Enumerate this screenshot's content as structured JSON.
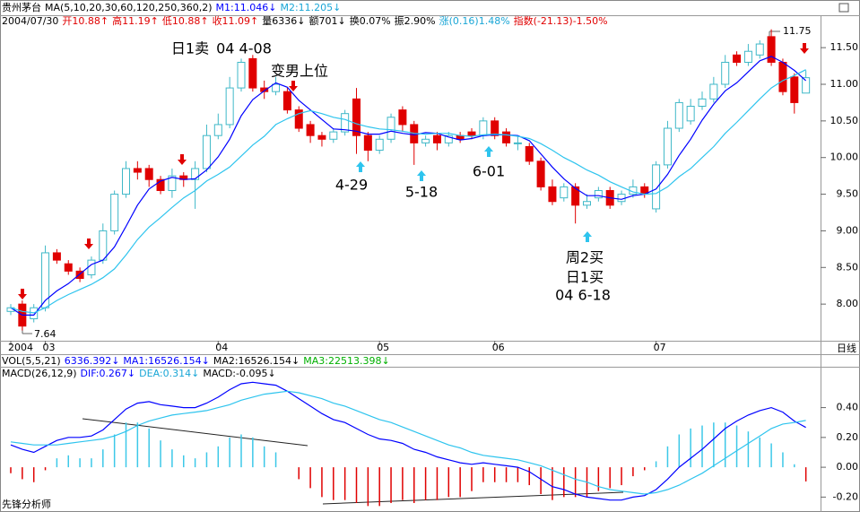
{
  "header": {
    "rows": [
      [
        {
          "text": "贵州茅台",
          "color": "#000000"
        },
        {
          "text": "MA(5,10,20,30,60,120,250,360,2)",
          "color": "#000000"
        },
        {
          "text": "M1:11.046↓",
          "color": "#0000ff"
        },
        {
          "text": "M2:11.205↓",
          "color": "#1aa6d6"
        }
      ],
      [
        {
          "text": "2004/07/30",
          "color": "#000000"
        },
        {
          "text": "开10.88↑",
          "color": "#e00000"
        },
        {
          "text": "高11.19↑",
          "color": "#e00000"
        },
        {
          "text": "低10.88↑",
          "color": "#e00000"
        },
        {
          "text": "收11.09↑",
          "color": "#e00000"
        },
        {
          "text": "量6336↓",
          "color": "#000000"
        },
        {
          "text": "额701↓",
          "color": "#000000"
        },
        {
          "text": "换0.07%",
          "color": "#000000"
        },
        {
          "text": "振2.90%",
          "color": "#000000"
        },
        {
          "text": "涨(0.16)1.48%",
          "color": "#1aa6d6"
        },
        {
          "text": "指数(-21.13)-1.50%",
          "color": "#e00000"
        }
      ]
    ]
  },
  "vol_header": [
    {
      "text": "VOL(5,5,21)",
      "color": "#000000"
    },
    {
      "text": "6336.392↓",
      "color": "#0000ff"
    },
    {
      "text": "MA1:16526.154↓",
      "color": "#0000ff"
    },
    {
      "text": "MA2:16526.154↓",
      "color": "#000000"
    },
    {
      "text": "MA3:22513.398↓",
      "color": "#00b000"
    }
  ],
  "footer": "先锋分析师",
  "chart_data": [
    {
      "type": "candlestick",
      "x_axis_label": "日线",
      "up_color": "#3fb8c8",
      "down_color": "#e00000",
      "categories": [
        "2004",
        null,
        null,
        "03",
        null,
        null,
        null,
        null,
        null,
        null,
        null,
        null,
        null,
        null,
        null,
        null,
        null,
        null,
        "04",
        null,
        null,
        null,
        null,
        null,
        null,
        null,
        null,
        null,
        null,
        null,
        null,
        null,
        "05",
        null,
        null,
        null,
        null,
        null,
        null,
        null,
        null,
        null,
        "06",
        null,
        null,
        null,
        null,
        null,
        null,
        null,
        null,
        null,
        null,
        null,
        null,
        null,
        "07",
        null,
        null,
        null,
        null,
        null,
        null,
        null,
        null,
        null,
        null,
        null,
        null,
        null
      ],
      "open": [
        7.9,
        8.0,
        7.8,
        7.95,
        8.7,
        8.55,
        8.45,
        8.4,
        8.6,
        9.0,
        9.5,
        9.85,
        9.85,
        9.7,
        9.55,
        9.75,
        9.7,
        9.85,
        10.3,
        10.45,
        10.95,
        11.35,
        10.95,
        10.9,
        10.9,
        10.65,
        10.45,
        10.3,
        10.25,
        10.35,
        10.8,
        10.3,
        10.1,
        10.25,
        10.65,
        10.45,
        10.2,
        10.3,
        10.2,
        10.3,
        10.35,
        10.3,
        10.5,
        10.35,
        10.2,
        10.15,
        9.95,
        9.6,
        9.45,
        9.6,
        9.35,
        9.45,
        9.55,
        9.4,
        9.5,
        9.6,
        9.3,
        9.9,
        10.4,
        10.5,
        10.7,
        10.8,
        11.0,
        11.4,
        11.3,
        11.4,
        11.65,
        11.3,
        11.1,
        10.88
      ],
      "high": [
        8.0,
        8.05,
        8.0,
        8.8,
        8.75,
        8.6,
        8.5,
        8.65,
        9.1,
        9.55,
        9.95,
        9.95,
        9.9,
        9.75,
        9.85,
        9.8,
        9.95,
        10.45,
        10.6,
        11.1,
        11.35,
        11.4,
        11.05,
        11.1,
        10.95,
        10.7,
        10.5,
        10.35,
        10.4,
        10.65,
        10.95,
        10.35,
        10.3,
        10.6,
        10.7,
        10.5,
        10.3,
        10.35,
        10.35,
        10.35,
        10.4,
        10.55,
        10.55,
        10.4,
        10.3,
        10.2,
        10.0,
        9.7,
        9.65,
        9.65,
        9.5,
        9.6,
        9.6,
        9.55,
        9.7,
        9.65,
        9.95,
        10.5,
        10.8,
        10.8,
        10.9,
        11.1,
        11.4,
        11.45,
        11.55,
        11.6,
        11.75,
        11.35,
        11.15,
        11.19
      ],
      "low": [
        7.85,
        7.64,
        7.75,
        7.9,
        8.55,
        8.4,
        8.3,
        8.35,
        8.55,
        8.95,
        9.45,
        9.7,
        9.6,
        9.5,
        9.45,
        9.6,
        9.3,
        9.8,
        10.25,
        10.4,
        10.9,
        10.9,
        10.8,
        10.85,
        10.6,
        10.35,
        10.2,
        10.15,
        10.2,
        10.3,
        10.05,
        9.95,
        10.05,
        10.2,
        10.35,
        9.9,
        10.15,
        10.1,
        10.15,
        10.2,
        10.25,
        10.25,
        10.25,
        10.15,
        10.1,
        9.9,
        9.55,
        9.35,
        9.4,
        9.1,
        9.3,
        9.4,
        9.3,
        9.35,
        9.45,
        9.45,
        9.25,
        9.85,
        10.35,
        10.45,
        10.65,
        10.75,
        10.95,
        11.25,
        11.25,
        11.35,
        11.25,
        10.85,
        10.6,
        10.88
      ],
      "close": [
        7.95,
        7.7,
        7.95,
        8.7,
        8.6,
        8.45,
        8.35,
        8.6,
        9.0,
        9.5,
        9.85,
        9.8,
        9.7,
        9.55,
        9.75,
        9.7,
        9.85,
        10.3,
        10.45,
        10.95,
        11.3,
        10.95,
        10.9,
        11.0,
        10.65,
        10.4,
        10.3,
        10.25,
        10.35,
        10.6,
        10.3,
        10.1,
        10.25,
        10.55,
        10.45,
        10.2,
        10.25,
        10.2,
        10.3,
        10.25,
        10.3,
        10.5,
        10.3,
        10.2,
        10.2,
        9.95,
        9.6,
        9.4,
        9.6,
        9.35,
        9.4,
        9.55,
        9.35,
        9.5,
        9.6,
        9.5,
        9.9,
        10.4,
        10.75,
        10.7,
        10.8,
        11.0,
        11.3,
        11.3,
        11.45,
        11.55,
        11.3,
        10.9,
        10.75,
        11.09
      ],
      "series": [
        {
          "color": "#0000ff",
          "values": [
            7.95,
            7.85,
            7.85,
            8.05,
            8.18,
            8.28,
            8.41,
            8.54,
            8.6,
            8.78,
            9.06,
            9.35,
            9.57,
            9.68,
            9.73,
            9.7,
            9.71,
            9.83,
            10.01,
            10.25,
            10.57,
            10.79,
            10.91,
            11.02,
            10.96,
            10.78,
            10.65,
            10.52,
            10.39,
            10.38,
            10.36,
            10.32,
            10.32,
            10.36,
            10.33,
            10.31,
            10.34,
            10.33,
            10.28,
            10.24,
            10.26,
            10.3,
            10.31,
            10.31,
            10.3,
            10.23,
            10.05,
            9.87,
            9.71,
            9.58,
            9.48,
            9.48,
            9.45,
            9.43,
            9.48,
            9.5,
            9.57,
            9.77,
            10.03,
            10.25,
            10.51,
            10.73,
            10.91,
            11.02,
            11.17,
            11.32,
            11.38,
            11.3,
            11.19,
            11.05
          ]
        },
        {
          "color": "#2ec4ee",
          "values": [
            7.95,
            7.9,
            7.88,
            7.95,
            8.05,
            8.13,
            8.2,
            8.27,
            8.36,
            8.48,
            8.67,
            8.88,
            9.05,
            9.18,
            9.32,
            9.45,
            9.55,
            9.68,
            9.77,
            9.87,
            10.02,
            10.17,
            10.29,
            10.45,
            10.53,
            10.6,
            10.64,
            10.6,
            10.55,
            10.52,
            10.46,
            10.42,
            10.39,
            10.38,
            10.36,
            10.33,
            10.32,
            10.33,
            10.33,
            10.3,
            10.29,
            10.31,
            10.32,
            10.31,
            10.29,
            10.26,
            10.19,
            10.1,
            10.0,
            9.92,
            9.83,
            9.76,
            9.67,
            9.6,
            9.53,
            9.5,
            9.51,
            9.6,
            9.74,
            9.85,
            10.0,
            10.15,
            10.33,
            10.48,
            10.64,
            10.8,
            10.95,
            11.05,
            11.12,
            11.2
          ]
        }
      ],
      "ylim": [
        7.5,
        11.93
      ],
      "yticks": [
        {
          "value": 8,
          "label": "8.00"
        },
        {
          "value": 8.5,
          "label": "8.50"
        },
        {
          "value": 9,
          "label": "9.00"
        },
        {
          "value": 9.5,
          "label": "9.50"
        },
        {
          "value": 10,
          "label": "10.00"
        },
        {
          "value": 10.5,
          "label": "10.50"
        },
        {
          "value": 11,
          "label": "11.00"
        },
        {
          "value": 11.5,
          "label": "11.50"
        }
      ],
      "grid": false,
      "annotations": [
        "日1卖",
        "04 4-08",
        "变男上位",
        "4-29",
        "5-18",
        "6-01",
        "周2买",
        "日1买",
        "04 6-18",
        "11.75",
        "7.64"
      ]
    },
    {
      "type": "macd",
      "header": [
        {
          "text": "MACD(26,12,9)",
          "color": "#000000"
        },
        {
          "text": "DIF:0.267↓",
          "color": "#0000ff"
        },
        {
          "text": "DEA:0.314↓",
          "color": "#1aa6d6"
        },
        {
          "text": "MACD:-0.095↓",
          "color": "#000000"
        }
      ],
      "up_color": "#3cc8e8",
      "down_color": "#e00000",
      "histogram": [
        -0.04,
        -0.08,
        -0.1,
        -0.02,
        0.06,
        0.08,
        0.06,
        0.06,
        0.12,
        0.22,
        0.3,
        0.3,
        0.26,
        0.18,
        0.12,
        0.08,
        0.06,
        0.1,
        0.14,
        0.2,
        0.22,
        0.2,
        0.14,
        0.1,
        0.0,
        -0.08,
        -0.14,
        -0.2,
        -0.22,
        -0.22,
        -0.24,
        -0.26,
        -0.26,
        -0.24,
        -0.22,
        -0.24,
        -0.22,
        -0.22,
        -0.2,
        -0.2,
        -0.16,
        -0.1,
        -0.1,
        -0.1,
        -0.1,
        -0.12,
        -0.18,
        -0.22,
        -0.2,
        -0.2,
        -0.2,
        -0.16,
        -0.14,
        -0.12,
        -0.06,
        -0.02,
        0.04,
        0.14,
        0.22,
        0.26,
        0.28,
        0.3,
        0.3,
        0.28,
        0.24,
        0.2,
        0.16,
        0.1,
        0.02,
        -0.095
      ],
      "series": [
        {
          "color": "#0000ff",
          "values": [
            0.15,
            0.12,
            0.1,
            0.14,
            0.18,
            0.2,
            0.2,
            0.21,
            0.25,
            0.32,
            0.39,
            0.43,
            0.44,
            0.42,
            0.41,
            0.4,
            0.4,
            0.43,
            0.47,
            0.52,
            0.56,
            0.57,
            0.56,
            0.55,
            0.51,
            0.46,
            0.41,
            0.36,
            0.32,
            0.3,
            0.26,
            0.22,
            0.19,
            0.18,
            0.16,
            0.12,
            0.1,
            0.07,
            0.05,
            0.03,
            0.02,
            0.03,
            0.02,
            0.01,
            0.0,
            -0.03,
            -0.08,
            -0.13,
            -0.15,
            -0.18,
            -0.2,
            -0.21,
            -0.22,
            -0.22,
            -0.2,
            -0.19,
            -0.15,
            -0.08,
            0.0,
            0.06,
            0.12,
            0.19,
            0.26,
            0.31,
            0.35,
            0.38,
            0.4,
            0.37,
            0.31,
            0.267
          ]
        },
        {
          "color": "#2ec4ee",
          "values": [
            0.17,
            0.16,
            0.15,
            0.15,
            0.15,
            0.16,
            0.17,
            0.18,
            0.19,
            0.21,
            0.24,
            0.28,
            0.31,
            0.33,
            0.35,
            0.36,
            0.37,
            0.38,
            0.4,
            0.42,
            0.45,
            0.47,
            0.49,
            0.5,
            0.51,
            0.5,
            0.48,
            0.46,
            0.43,
            0.41,
            0.38,
            0.35,
            0.32,
            0.3,
            0.27,
            0.24,
            0.21,
            0.18,
            0.15,
            0.13,
            0.1,
            0.08,
            0.07,
            0.06,
            0.05,
            0.03,
            0.01,
            -0.02,
            -0.05,
            -0.08,
            -0.1,
            -0.13,
            -0.15,
            -0.16,
            -0.17,
            -0.18,
            -0.17,
            -0.15,
            -0.12,
            -0.08,
            -0.04,
            0.01,
            0.06,
            0.11,
            0.16,
            0.21,
            0.26,
            0.29,
            0.3,
            0.314
          ]
        }
      ],
      "ylim": [
        -0.27,
        0.62
      ],
      "yticks": [
        {
          "value": 0.4,
          "label": "0.40"
        },
        {
          "value": 0.2,
          "label": "0.20"
        },
        {
          "value": 0,
          "label": "0.00"
        },
        {
          "value": -0.2,
          "label": "-0.20"
        }
      ]
    }
  ]
}
